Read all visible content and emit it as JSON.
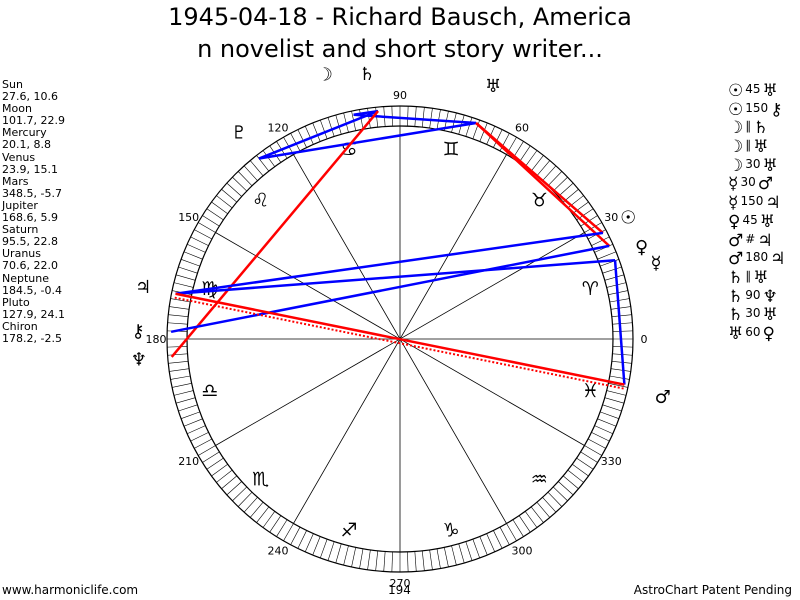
{
  "title": {
    "line1": "1945-04-18 - Richard Bausch, America",
    "line2": "n novelist and short story writer..."
  },
  "positions": [
    {
      "name": "Sun",
      "values": "27.6, 10.6"
    },
    {
      "name": "Moon",
      "values": "101.7, 22.9"
    },
    {
      "name": "Mercury",
      "values": "20.1, 8.8"
    },
    {
      "name": "Venus",
      "values": "23.9, 15.1"
    },
    {
      "name": "Mars",
      "values": "348.5, -5.7"
    },
    {
      "name": "Jupiter",
      "values": "168.6, 5.9"
    },
    {
      "name": "Saturn",
      "values": "95.5, 22.8"
    },
    {
      "name": "Uranus",
      "values": "70.6, 22.0"
    },
    {
      "name": "Neptune",
      "values": "184.5, -0.4"
    },
    {
      "name": "Pluto",
      "values": "127.9, 24.1"
    },
    {
      "name": "Chiron",
      "values": "178.2, -2.5"
    }
  ],
  "aspects": [
    {
      "p1": "☉",
      "sym": "45",
      "p2": "♅",
      "p1_icon": "sun-icon",
      "p2_icon": "uranus-icon"
    },
    {
      "p1": "☉",
      "sym": "150",
      "p2": "⚷",
      "p1_icon": "sun-icon",
      "p2_icon": "chiron-icon"
    },
    {
      "p1": "☽",
      "sym": "∥",
      "p2": "♄",
      "p1_icon": "moon-icon",
      "p2_icon": "saturn-icon"
    },
    {
      "p1": "☽",
      "sym": "∥",
      "p2": "♅",
      "p1_icon": "moon-icon",
      "p2_icon": "uranus-icon"
    },
    {
      "p1": "☽",
      "sym": "30",
      "p2": "♅",
      "p1_icon": "moon-icon",
      "p2_icon": "uranus-icon"
    },
    {
      "p1": "☿",
      "sym": "30",
      "p2": "♂",
      "p1_icon": "mercury-icon",
      "p2_icon": "mars-icon"
    },
    {
      "p1": "☿",
      "sym": "150",
      "p2": "♃",
      "p1_icon": "mercury-icon",
      "p2_icon": "jupiter-icon"
    },
    {
      "p1": "♀",
      "sym": "45",
      "p2": "♅",
      "p1_icon": "venus-icon",
      "p2_icon": "uranus-icon"
    },
    {
      "p1": "♂",
      "sym": "#",
      "p2": "♃",
      "p1_icon": "mars-icon",
      "p2_icon": "jupiter-icon"
    },
    {
      "p1": "♂",
      "sym": "180",
      "p2": "♃",
      "p1_icon": "mars-icon",
      "p2_icon": "jupiter-icon"
    },
    {
      "p1": "♄",
      "sym": "∥",
      "p2": "♅",
      "p1_icon": "saturn-icon",
      "p2_icon": "uranus-icon"
    },
    {
      "p1": "♄",
      "sym": "90",
      "p2": "♆",
      "p1_icon": "saturn-icon",
      "p2_icon": "neptune-icon"
    },
    {
      "p1": "♄",
      "sym": "30",
      "p2": "♅",
      "p1_icon": "saturn-icon",
      "p2_icon": "uranus-icon"
    },
    {
      "p1": "♅",
      "sym": "60",
      "p2": "♀",
      "p1_icon": "uranus-icon",
      "p2_icon": "venus-icon"
    }
  ],
  "wheel": {
    "degree_labels": [
      {
        "deg": 0,
        "text": "0"
      },
      {
        "deg": 30,
        "text": "30"
      },
      {
        "deg": 60,
        "text": "60"
      },
      {
        "deg": 90,
        "text": "90"
      },
      {
        "deg": 120,
        "text": "120"
      },
      {
        "deg": 150,
        "text": "150"
      },
      {
        "deg": 180,
        "text": "180"
      },
      {
        "deg": 210,
        "text": "210"
      },
      {
        "deg": 240,
        "text": "240"
      },
      {
        "deg": 270,
        "text": "270"
      },
      {
        "deg": 300,
        "text": "300"
      },
      {
        "deg": 330,
        "text": "330"
      }
    ],
    "signs": [
      {
        "deg": 15,
        "glyph": "♈",
        "icon": "aries-icon"
      },
      {
        "deg": 45,
        "glyph": "♉",
        "icon": "taurus-icon"
      },
      {
        "deg": 75,
        "glyph": "♊",
        "icon": "gemini-icon"
      },
      {
        "deg": 105,
        "glyph": "♋",
        "icon": "cancer-icon"
      },
      {
        "deg": 135,
        "glyph": "♌",
        "icon": "leo-icon"
      },
      {
        "deg": 165,
        "glyph": "♍",
        "icon": "virgo-icon"
      },
      {
        "deg": 195,
        "glyph": "♎",
        "icon": "libra-icon"
      },
      {
        "deg": 225,
        "glyph": "♏",
        "icon": "scorpio-icon"
      },
      {
        "deg": 255,
        "glyph": "♐",
        "icon": "sagittarius-icon"
      },
      {
        "deg": 285,
        "glyph": "♑",
        "icon": "capricorn-icon"
      },
      {
        "deg": 315,
        "glyph": "♒",
        "icon": "aquarius-icon"
      },
      {
        "deg": 345,
        "glyph": "♓",
        "icon": "pisces-icon"
      }
    ],
    "planets": [
      {
        "key": "sun",
        "glyph": "☉",
        "deg": 27.6,
        "icon": "sun-icon"
      },
      {
        "key": "moon",
        "glyph": "☽",
        "deg": 101.7,
        "icon": "moon-icon"
      },
      {
        "key": "mercury",
        "glyph": "☿",
        "deg": 20.1,
        "icon": "mercury-icon"
      },
      {
        "key": "venus",
        "glyph": "♀",
        "deg": 23.9,
        "icon": "venus-icon"
      },
      {
        "key": "mars",
        "glyph": "♂",
        "deg": 348.5,
        "icon": "mars-icon"
      },
      {
        "key": "jupiter",
        "glyph": "♃",
        "deg": 168.6,
        "icon": "jupiter-icon"
      },
      {
        "key": "saturn",
        "glyph": "♄",
        "deg": 95.5,
        "icon": "saturn-icon"
      },
      {
        "key": "uranus",
        "glyph": "♅",
        "deg": 70.6,
        "icon": "uranus-icon"
      },
      {
        "key": "neptune",
        "glyph": "♆",
        "deg": 184.5,
        "icon": "neptune-icon"
      },
      {
        "key": "pluto",
        "glyph": "♇",
        "deg": 127.9,
        "icon": "pluto-icon"
      },
      {
        "key": "chiron",
        "glyph": "⚷",
        "deg": 178.2,
        "icon": "chiron-icon"
      }
    ],
    "aspect_lines": [
      {
        "a": 101.7,
        "b": 95.5,
        "color": "#0000ff"
      },
      {
        "a": 95.5,
        "b": 128,
        "color": "#0000ff"
      },
      {
        "a": 128,
        "b": 70.6,
        "color": "#0000ff"
      },
      {
        "a": 101.7,
        "b": 70.6,
        "color": "#0000ff"
      },
      {
        "a": 95.5,
        "b": 184.5,
        "color": "#ff0000"
      },
      {
        "a": 70.6,
        "b": 24,
        "color": "#ff0000"
      },
      {
        "a": 70.6,
        "b": 27.6,
        "color": "#ff0000"
      },
      {
        "a": 27.6,
        "b": 168.6,
        "color": "#0000ff"
      },
      {
        "a": 20.1,
        "b": 168.6,
        "color": "#0000ff"
      },
      {
        "a": 24,
        "b": 178.2,
        "color": "#0000ff"
      },
      {
        "a": 20.1,
        "b": 348.5,
        "color": "#0000ff"
      },
      {
        "a": 168.6,
        "b": 348.5,
        "color": "#ff0000"
      },
      {
        "a": 168.6,
        "b": 348.5,
        "color": "#ff0000",
        "dotted": true
      }
    ]
  },
  "footer": {
    "left": "www.harmoniclife.com",
    "center": "194",
    "right": "AstroChart Patent Pending"
  }
}
